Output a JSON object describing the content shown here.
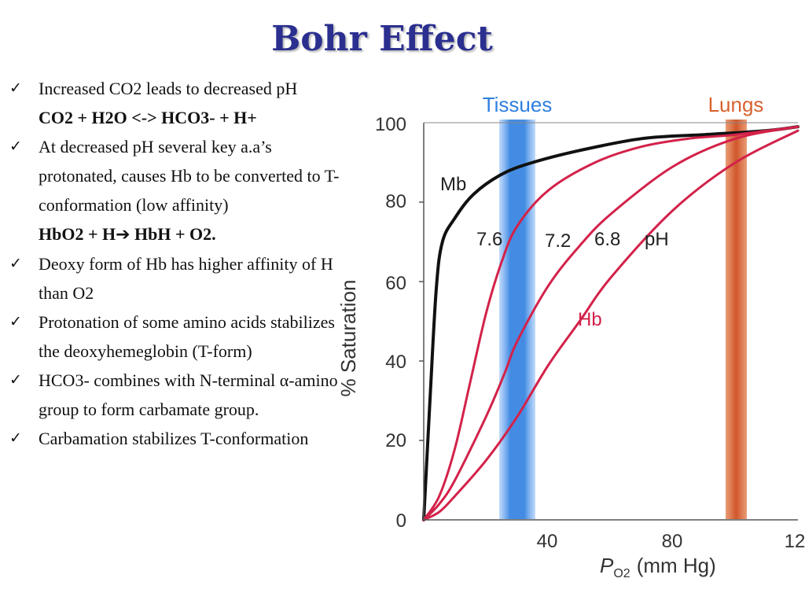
{
  "slide": {
    "title": "Bohr Effect",
    "check_icon": "check-mark-icon",
    "bullets": [
      {
        "text": "Increased CO2 leads to decreased pH"
      },
      {
        "formula": "CO2 + H2O <-> HCO3- + H+"
      },
      {
        "text": "At decreased pH several key a.a’s protonated, causes Hb to be converted to  T-conformation (low affinity)"
      },
      {
        "formula_left": "HbO2 + H",
        "formula_arrow": "➔",
        "formula_right": " HbH + O2."
      },
      {
        "text": " Deoxy form of Hb has higher affinity of H than O2"
      },
      {
        "text": "Protonation of some amino acids stabilizes the deoxyhemeglobin (T-form)"
      },
      {
        "text": "HCO3- combines with N-terminal α-amino group to form carbamate group."
      },
      {
        "text": "Carbamation stabilizes T-conformation"
      }
    ]
  },
  "chart_data": {
    "type": "line",
    "xlabel_main": "P",
    "xlabel_sub": "O2",
    "xlabel_unit": "(mm Hg)",
    "ylabel": "% Saturation",
    "xlim": [
      0,
      120
    ],
    "ylim": [
      0,
      100
    ],
    "x_ticks": [
      "40",
      "80",
      "12"
    ],
    "y_ticks": [
      "0",
      "20",
      "40",
      "60",
      "80",
      "100"
    ],
    "grid": false,
    "bands": [
      {
        "label": "Tissues",
        "x_center": 34,
        "color": "#2f7fe0"
      },
      {
        "label": "Lungs",
        "x_center": 100,
        "color": "#d8622e"
      }
    ],
    "labels": {
      "mb": "Mb",
      "hb": "Hb",
      "ph": "pH",
      "ph_values": [
        "7.6",
        "7.2",
        "6.8"
      ]
    },
    "colors": {
      "mb": "#111111",
      "hb": "#d3224a"
    },
    "series": [
      {
        "name": "Mb",
        "x": [
          0,
          2,
          4,
          6,
          10,
          16,
          25,
          35,
          50,
          70,
          90,
          110,
          120
        ],
        "y": [
          0,
          30,
          58,
          70,
          76,
          82,
          87,
          90,
          93,
          96,
          97,
          98,
          99
        ]
      },
      {
        "name": "7.6",
        "x": [
          0,
          5,
          10,
          15,
          20,
          25,
          30,
          40,
          55,
          70,
          85,
          100,
          120
        ],
        "y": [
          0,
          6,
          18,
          35,
          52,
          65,
          74,
          83,
          90,
          94,
          96,
          97,
          99
        ]
      },
      {
        "name": "7.2",
        "x": [
          0,
          5,
          10,
          20,
          26,
          30,
          40,
          50,
          60,
          80,
          100,
          120
        ],
        "y": [
          0,
          4,
          10,
          26,
          37,
          45,
          59,
          69,
          77,
          89,
          96,
          99
        ]
      },
      {
        "name": "6.8",
        "x": [
          0,
          5,
          10,
          20,
          30,
          40,
          50,
          60,
          80,
          100,
          120
        ],
        "y": [
          0,
          2,
          6,
          15,
          26,
          39,
          50,
          61,
          78,
          90,
          98
        ]
      }
    ]
  }
}
